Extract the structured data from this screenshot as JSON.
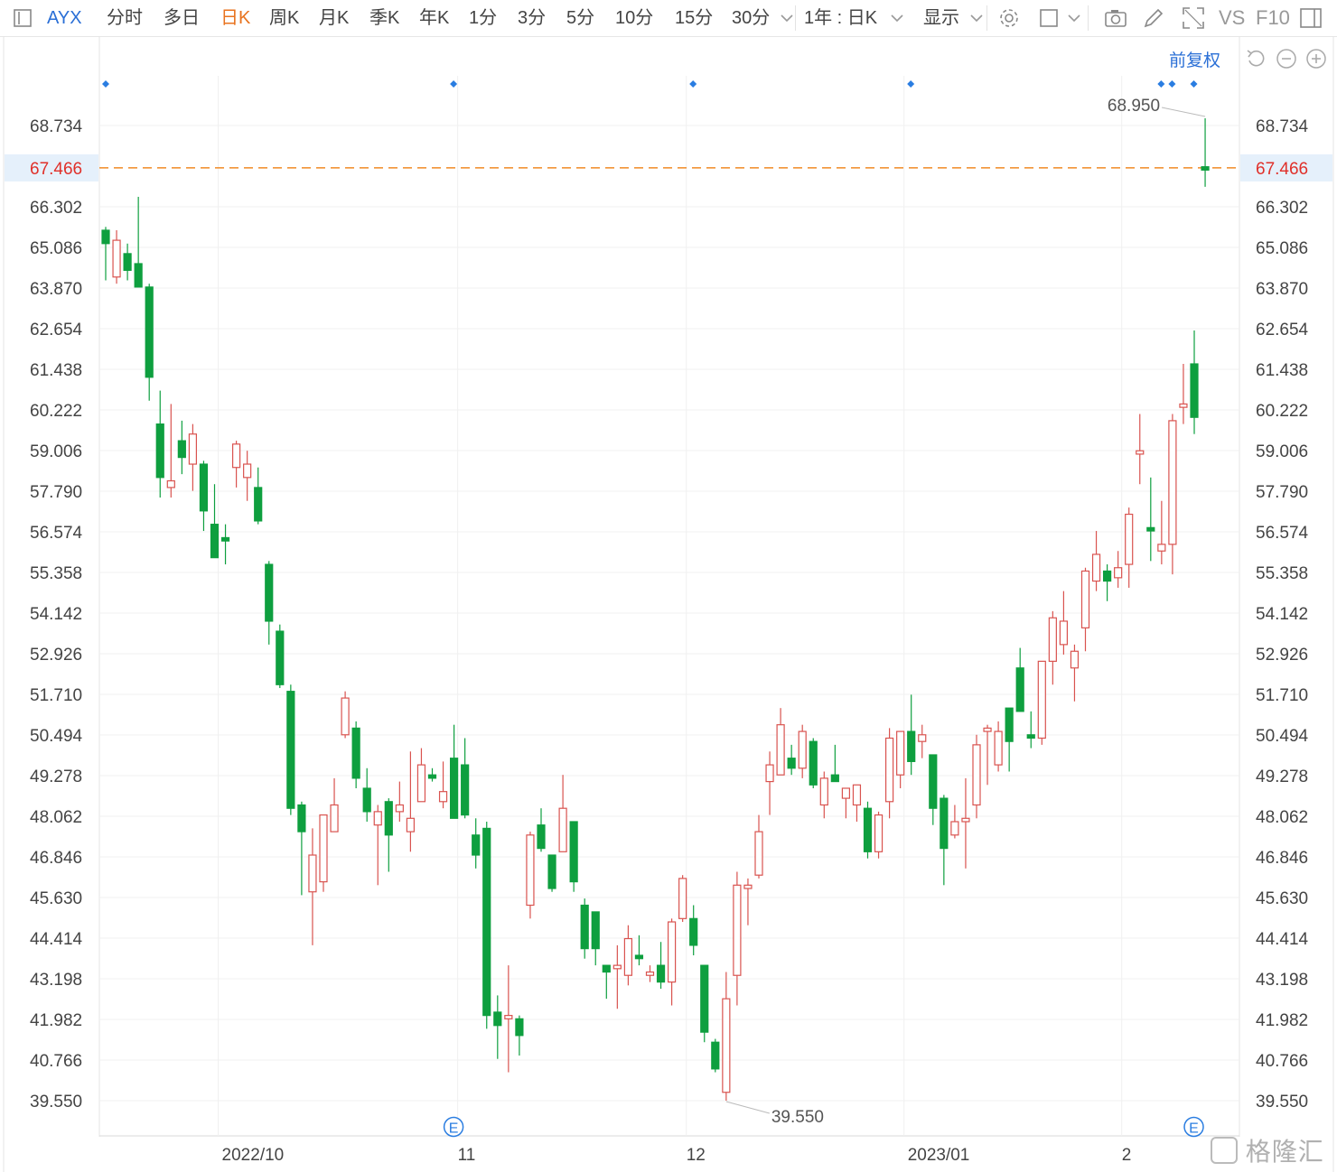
{
  "toolbar": {
    "symbol": "AYX",
    "periods": [
      "分时",
      "多日",
      "日K",
      "周K",
      "月K",
      "季K",
      "年K",
      "1分",
      "3分",
      "5分",
      "10分",
      "15分",
      "30分"
    ],
    "active_period": "日K",
    "range_select": "1年 : 日K",
    "display_label": "显示",
    "vs_label": "VS",
    "f10_label": "F10",
    "icons": [
      "panel-toggle-icon",
      "settings-gear-icon",
      "rect-layout-icon",
      "camera-icon",
      "pencil-icon",
      "fullscreen-icon",
      "side-panel-icon"
    ]
  },
  "controls": {
    "adjust_label": "前复权",
    "icons": [
      "undo-icon",
      "zoom-out-icon",
      "zoom-in-icon"
    ]
  },
  "watermark": "格隆汇",
  "colors": {
    "up": "#d9534f",
    "down": "#0e9f3f",
    "current_line": "#f08a24",
    "current_label": "#e0302a",
    "current_bg": "#e5f0fb",
    "marker": "#2a7de1"
  },
  "chart_data": {
    "type": "candlestick",
    "symbol": "AYX",
    "y_ticks": [
      "68.734",
      "67.466",
      "66.302",
      "65.086",
      "63.870",
      "62.654",
      "61.438",
      "60.222",
      "59.006",
      "57.790",
      "56.574",
      "55.358",
      "54.142",
      "52.926",
      "51.710",
      "50.494",
      "49.278",
      "48.062",
      "46.846",
      "45.630",
      "44.414",
      "43.198",
      "41.982",
      "40.766",
      "39.550"
    ],
    "ylim": [
      38.9,
      70.6
    ],
    "x_ticks": [
      {
        "index": 11,
        "label": "2022/10"
      },
      {
        "index": 33,
        "label": "11"
      },
      {
        "index": 54,
        "label": "12"
      },
      {
        "index": 74,
        "label": "2023/01"
      },
      {
        "index": 94,
        "label": "2"
      }
    ],
    "current_price": "67.466",
    "annotations": {
      "high": {
        "index": 101,
        "value": "68.950"
      },
      "low": {
        "index": 57,
        "value": "39.550"
      }
    },
    "dot_markers": [
      0,
      32,
      54,
      74,
      97,
      98,
      100
    ],
    "earnings_markers": [
      {
        "index": 32,
        "label": "E"
      },
      {
        "index": 100,
        "label": "E"
      }
    ],
    "candles": [
      {
        "o": 65.6,
        "h": 65.7,
        "l": 64.1,
        "c": 65.2
      },
      {
        "o": 64.2,
        "h": 65.6,
        "l": 64.0,
        "c": 65.3
      },
      {
        "o": 64.9,
        "h": 65.2,
        "l": 64.1,
        "c": 64.4
      },
      {
        "o": 64.6,
        "h": 66.6,
        "l": 63.9,
        "c": 63.9
      },
      {
        "o": 63.9,
        "h": 64.0,
        "l": 60.5,
        "c": 61.2
      },
      {
        "o": 59.8,
        "h": 60.8,
        "l": 57.6,
        "c": 58.2
      },
      {
        "o": 57.9,
        "h": 60.4,
        "l": 57.6,
        "c": 58.1
      },
      {
        "o": 59.3,
        "h": 59.9,
        "l": 58.3,
        "c": 58.8
      },
      {
        "o": 58.6,
        "h": 59.8,
        "l": 57.8,
        "c": 59.5
      },
      {
        "o": 58.6,
        "h": 58.7,
        "l": 56.6,
        "c": 57.2
      },
      {
        "o": 56.8,
        "h": 58.0,
        "l": 55.8,
        "c": 55.8
      },
      {
        "o": 56.4,
        "h": 56.8,
        "l": 55.6,
        "c": 56.3
      },
      {
        "o": 58.5,
        "h": 59.3,
        "l": 57.9,
        "c": 59.2
      },
      {
        "o": 58.2,
        "h": 59.0,
        "l": 57.5,
        "c": 58.6
      },
      {
        "o": 57.9,
        "h": 58.5,
        "l": 56.8,
        "c": 56.9
      },
      {
        "o": 55.6,
        "h": 55.7,
        "l": 53.2,
        "c": 53.9
      },
      {
        "o": 53.6,
        "h": 53.8,
        "l": 51.9,
        "c": 52.0
      },
      {
        "o": 51.8,
        "h": 52.0,
        "l": 48.1,
        "c": 48.3
      },
      {
        "o": 48.4,
        "h": 48.5,
        "l": 45.7,
        "c": 47.6
      },
      {
        "o": 45.8,
        "h": 47.7,
        "l": 44.2,
        "c": 46.9
      },
      {
        "o": 46.1,
        "h": 48.1,
        "l": 45.8,
        "c": 48.1
      },
      {
        "o": 47.6,
        "h": 49.2,
        "l": 47.6,
        "c": 48.4
      },
      {
        "o": 50.5,
        "h": 51.8,
        "l": 50.4,
        "c": 51.6
      },
      {
        "o": 50.7,
        "h": 50.9,
        "l": 48.9,
        "c": 49.2
      },
      {
        "o": 48.9,
        "h": 49.5,
        "l": 47.9,
        "c": 48.2
      },
      {
        "o": 47.8,
        "h": 48.4,
        "l": 46.0,
        "c": 48.2
      },
      {
        "o": 48.5,
        "h": 48.6,
        "l": 46.4,
        "c": 47.5
      },
      {
        "o": 48.2,
        "h": 49.1,
        "l": 47.9,
        "c": 48.4
      },
      {
        "o": 47.6,
        "h": 50.0,
        "l": 47.0,
        "c": 48.0
      },
      {
        "o": 48.5,
        "h": 50.1,
        "l": 48.5,
        "c": 49.6
      },
      {
        "o": 49.3,
        "h": 49.5,
        "l": 49.1,
        "c": 49.2
      },
      {
        "o": 48.5,
        "h": 49.7,
        "l": 48.3,
        "c": 48.8
      },
      {
        "o": 49.8,
        "h": 50.8,
        "l": 48.0,
        "c": 48.0
      },
      {
        "o": 49.6,
        "h": 50.4,
        "l": 48.0,
        "c": 48.1
      },
      {
        "o": 47.5,
        "h": 48.0,
        "l": 46.5,
        "c": 46.9
      },
      {
        "o": 47.7,
        "h": 47.9,
        "l": 41.7,
        "c": 42.1
      },
      {
        "o": 42.2,
        "h": 42.7,
        "l": 40.8,
        "c": 41.8
      },
      {
        "o": 42.0,
        "h": 43.6,
        "l": 40.4,
        "c": 42.1
      },
      {
        "o": 42.0,
        "h": 42.1,
        "l": 40.9,
        "c": 41.5
      },
      {
        "o": 45.4,
        "h": 47.6,
        "l": 45.0,
        "c": 47.5
      },
      {
        "o": 47.8,
        "h": 48.3,
        "l": 47.0,
        "c": 47.1
      },
      {
        "o": 46.9,
        "h": 46.9,
        "l": 45.8,
        "c": 45.9
      },
      {
        "o": 47.0,
        "h": 49.3,
        "l": 47.0,
        "c": 48.3
      },
      {
        "o": 47.9,
        "h": 47.9,
        "l": 45.8,
        "c": 46.1
      },
      {
        "o": 45.4,
        "h": 45.6,
        "l": 43.8,
        "c": 44.1
      },
      {
        "o": 45.2,
        "h": 45.2,
        "l": 43.6,
        "c": 44.1
      },
      {
        "o": 43.6,
        "h": 43.6,
        "l": 42.6,
        "c": 43.4
      },
      {
        "o": 43.5,
        "h": 44.2,
        "l": 42.3,
        "c": 43.6
      },
      {
        "o": 43.3,
        "h": 44.8,
        "l": 43.0,
        "c": 44.4
      },
      {
        "o": 43.9,
        "h": 44.5,
        "l": 43.6,
        "c": 43.8
      },
      {
        "o": 43.3,
        "h": 43.6,
        "l": 43.1,
        "c": 43.4
      },
      {
        "o": 43.6,
        "h": 44.3,
        "l": 42.9,
        "c": 43.1
      },
      {
        "o": 43.1,
        "h": 45.0,
        "l": 42.4,
        "c": 44.9
      },
      {
        "o": 45.0,
        "h": 46.3,
        "l": 44.9,
        "c": 46.2
      },
      {
        "o": 45.0,
        "h": 45.4,
        "l": 43.9,
        "c": 44.2
      },
      {
        "o": 43.6,
        "h": 43.6,
        "l": 41.3,
        "c": 41.6
      },
      {
        "o": 41.3,
        "h": 41.4,
        "l": 40.4,
        "c": 40.5
      },
      {
        "o": 39.8,
        "h": 43.4,
        "l": 39.55,
        "c": 42.6
      },
      {
        "o": 43.3,
        "h": 46.4,
        "l": 42.4,
        "c": 46.0
      },
      {
        "o": 45.9,
        "h": 46.2,
        "l": 44.8,
        "c": 46.0
      },
      {
        "o": 46.3,
        "h": 48.1,
        "l": 46.2,
        "c": 47.6
      },
      {
        "o": 49.1,
        "h": 50.0,
        "l": 48.1,
        "c": 49.6
      },
      {
        "o": 49.3,
        "h": 51.3,
        "l": 49.3,
        "c": 50.8
      },
      {
        "o": 49.8,
        "h": 50.2,
        "l": 49.3,
        "c": 49.5
      },
      {
        "o": 49.5,
        "h": 50.8,
        "l": 49.2,
        "c": 50.6
      },
      {
        "o": 50.3,
        "h": 50.4,
        "l": 48.9,
        "c": 49.0
      },
      {
        "o": 48.4,
        "h": 49.4,
        "l": 48.0,
        "c": 49.2
      },
      {
        "o": 49.3,
        "h": 50.2,
        "l": 49.2,
        "c": 49.1
      },
      {
        "o": 48.6,
        "h": 48.8,
        "l": 48.0,
        "c": 48.9
      },
      {
        "o": 48.4,
        "h": 49.0,
        "l": 47.9,
        "c": 49.0
      },
      {
        "o": 48.3,
        "h": 48.5,
        "l": 46.8,
        "c": 47.0
      },
      {
        "o": 47.0,
        "h": 48.2,
        "l": 46.8,
        "c": 48.1
      },
      {
        "o": 48.5,
        "h": 50.7,
        "l": 48.0,
        "c": 50.4
      },
      {
        "o": 49.3,
        "h": 50.6,
        "l": 48.9,
        "c": 50.6
      },
      {
        "o": 50.6,
        "h": 51.7,
        "l": 49.3,
        "c": 49.7
      },
      {
        "o": 50.3,
        "h": 50.8,
        "l": 49.8,
        "c": 50.5
      },
      {
        "o": 49.9,
        "h": 49.9,
        "l": 47.8,
        "c": 48.3
      },
      {
        "o": 48.6,
        "h": 48.7,
        "l": 46.0,
        "c": 47.1
      },
      {
        "o": 47.5,
        "h": 48.4,
        "l": 47.4,
        "c": 47.9
      },
      {
        "o": 47.9,
        "h": 49.2,
        "l": 46.5,
        "c": 48.0
      },
      {
        "o": 48.4,
        "h": 50.5,
        "l": 48.0,
        "c": 50.2
      },
      {
        "o": 50.6,
        "h": 50.8,
        "l": 49.0,
        "c": 50.7
      },
      {
        "o": 49.6,
        "h": 50.9,
        "l": 49.4,
        "c": 50.6
      },
      {
        "o": 51.3,
        "h": 51.3,
        "l": 49.4,
        "c": 50.3
      },
      {
        "o": 52.5,
        "h": 53.1,
        "l": 51.2,
        "c": 51.2
      },
      {
        "o": 50.5,
        "h": 51.2,
        "l": 50.1,
        "c": 50.4
      },
      {
        "o": 50.4,
        "h": 52.7,
        "l": 50.2,
        "c": 52.7
      },
      {
        "o": 52.7,
        "h": 54.2,
        "l": 52.0,
        "c": 54.0
      },
      {
        "o": 53.2,
        "h": 54.8,
        "l": 52.9,
        "c": 53.9
      },
      {
        "o": 52.5,
        "h": 53.2,
        "l": 51.5,
        "c": 53.0
      },
      {
        "o": 53.7,
        "h": 55.5,
        "l": 53.0,
        "c": 55.4
      },
      {
        "o": 55.1,
        "h": 56.6,
        "l": 54.8,
        "c": 55.9
      },
      {
        "o": 55.4,
        "h": 55.6,
        "l": 54.5,
        "c": 55.1
      },
      {
        "o": 55.2,
        "h": 56.0,
        "l": 54.9,
        "c": 55.5
      },
      {
        "o": 55.6,
        "h": 57.3,
        "l": 54.9,
        "c": 57.1
      },
      {
        "o": 58.9,
        "h": 60.1,
        "l": 58.0,
        "c": 59.0
      },
      {
        "o": 56.7,
        "h": 58.2,
        "l": 55.7,
        "c": 56.6
      },
      {
        "o": 56.0,
        "h": 57.5,
        "l": 55.6,
        "c": 56.2
      },
      {
        "o": 56.2,
        "h": 60.1,
        "l": 55.3,
        "c": 59.9
      },
      {
        "o": 60.3,
        "h": 61.6,
        "l": 59.8,
        "c": 60.4
      },
      {
        "o": 61.6,
        "h": 62.6,
        "l": 59.5,
        "c": 60.0
      },
      {
        "o": 67.5,
        "h": 68.95,
        "l": 66.9,
        "c": 67.4
      }
    ]
  }
}
